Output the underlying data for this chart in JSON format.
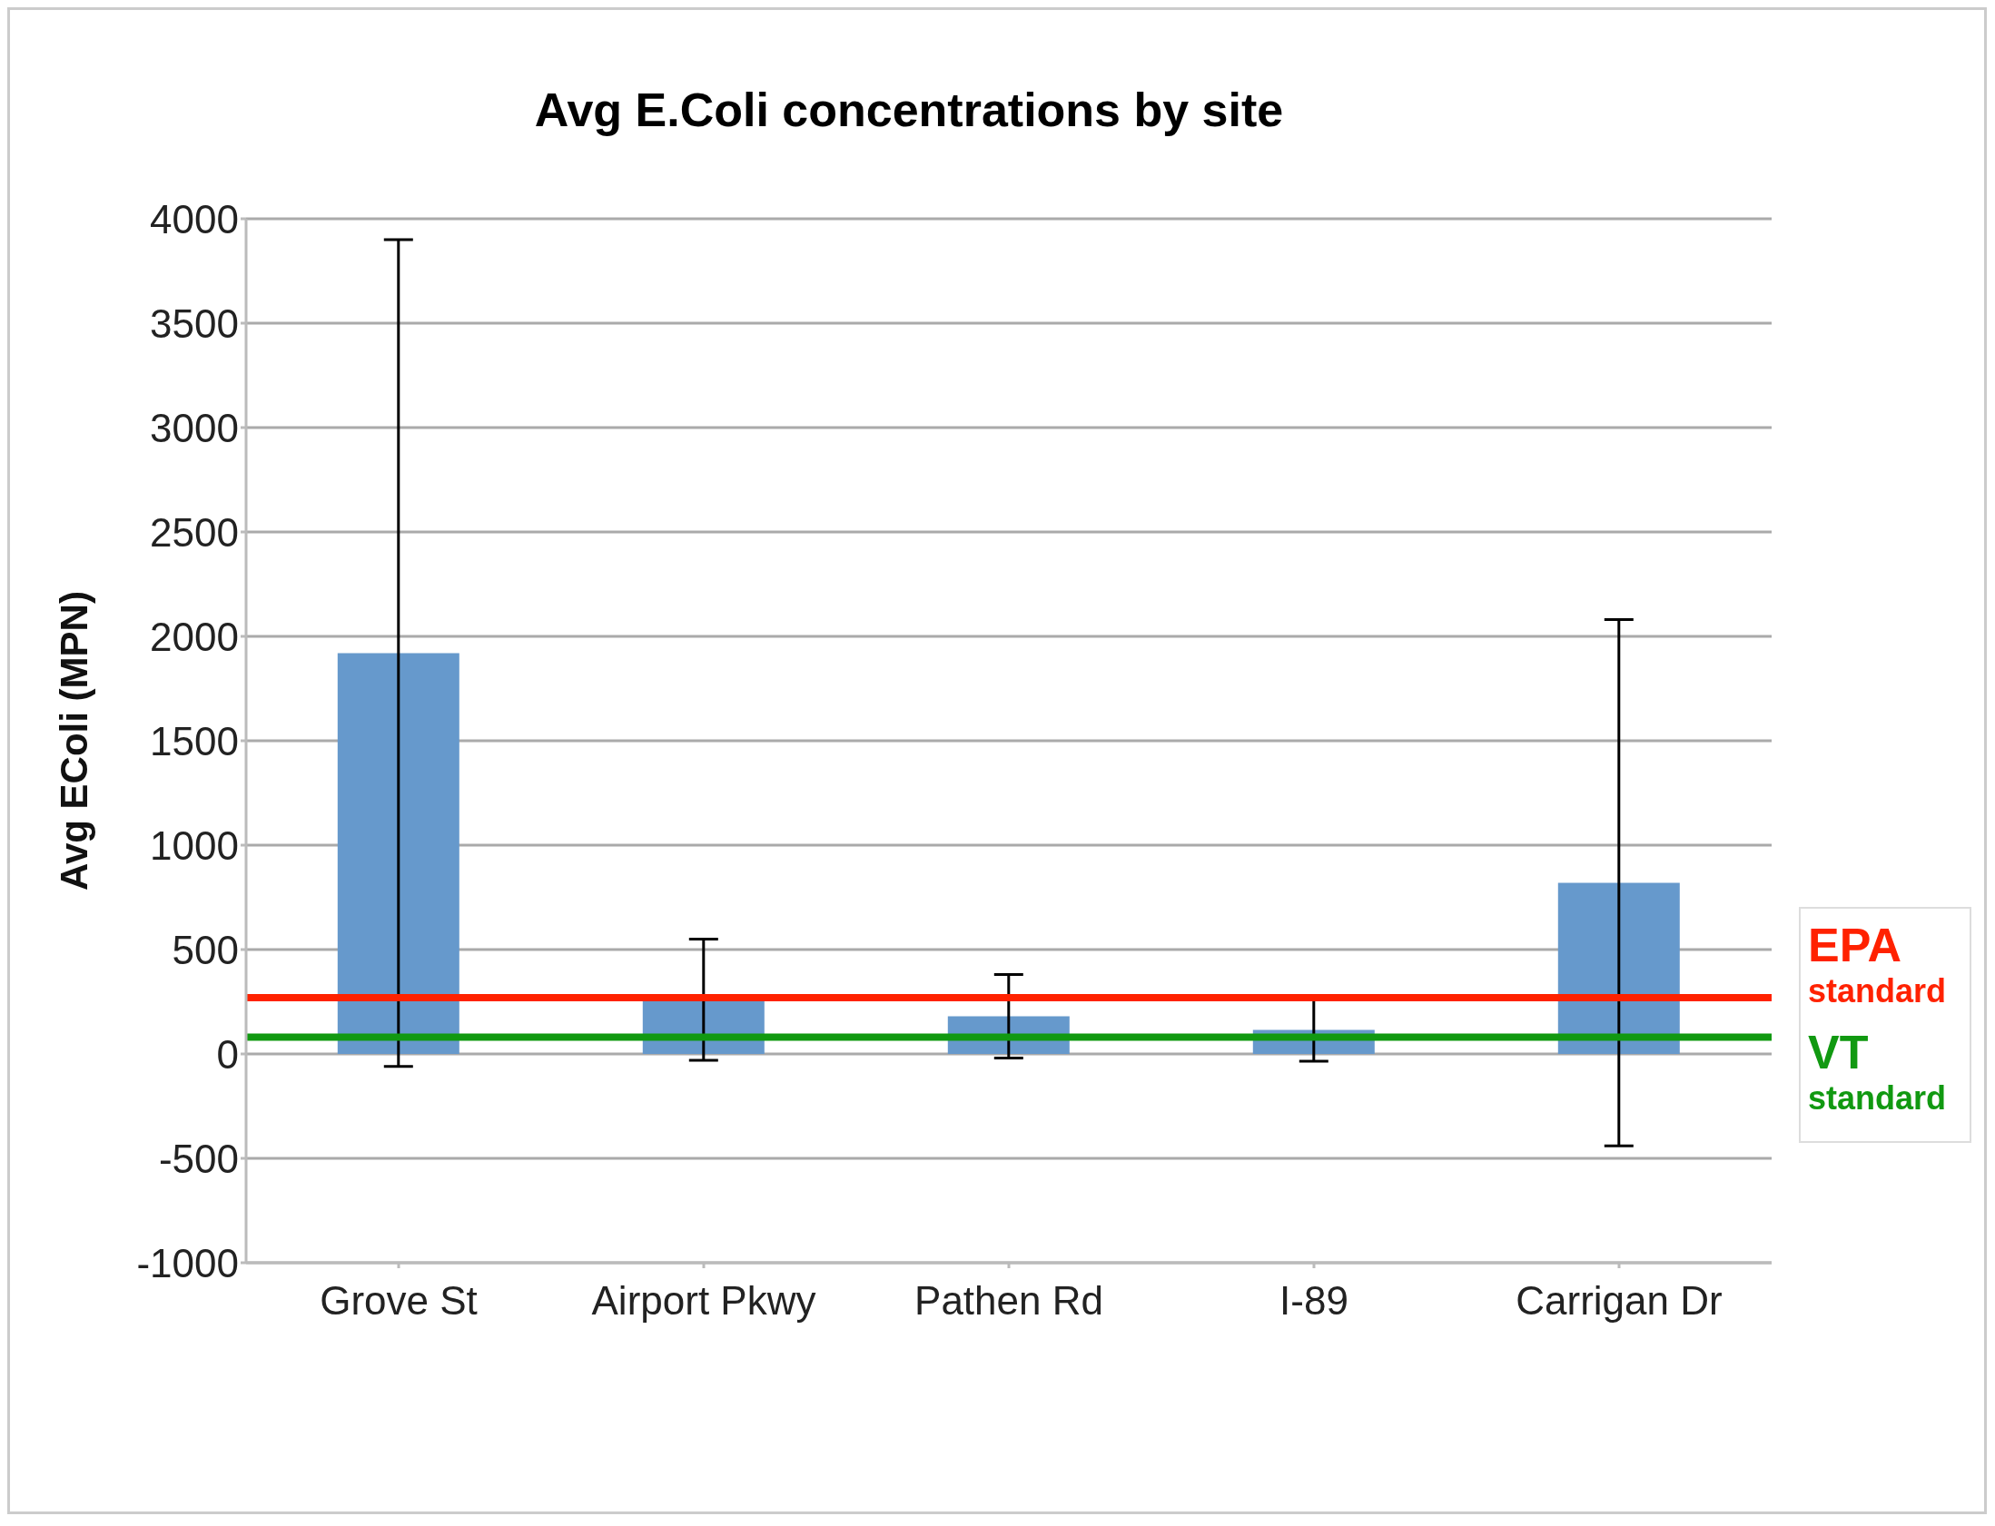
{
  "chart_data": {
    "type": "bar",
    "title": "Avg E.Coli concentrations by site",
    "ylabel": "Avg EColi (MPN)",
    "categories": [
      "Grove St",
      "Airport Pkwy",
      "Pathen Rd",
      "I-89",
      "Carrigan Dr"
    ],
    "values": [
      1920,
      260,
      180,
      115,
      820
    ],
    "errors": [
      1980,
      290,
      200,
      150,
      1260
    ],
    "color": "#6699cc",
    "ylim": [
      -1000,
      4000
    ],
    "yticks": [
      -1000,
      -500,
      0,
      500,
      1000,
      1500,
      2000,
      2500,
      3000,
      3500,
      4000
    ],
    "grid": "y",
    "ref_lines": [
      {
        "axis": "y",
        "value": 270,
        "label": "EPA standard",
        "color": "#ff2200"
      },
      {
        "axis": "y",
        "value": 80,
        "label": "VT standard",
        "color": "#119911"
      }
    ]
  }
}
